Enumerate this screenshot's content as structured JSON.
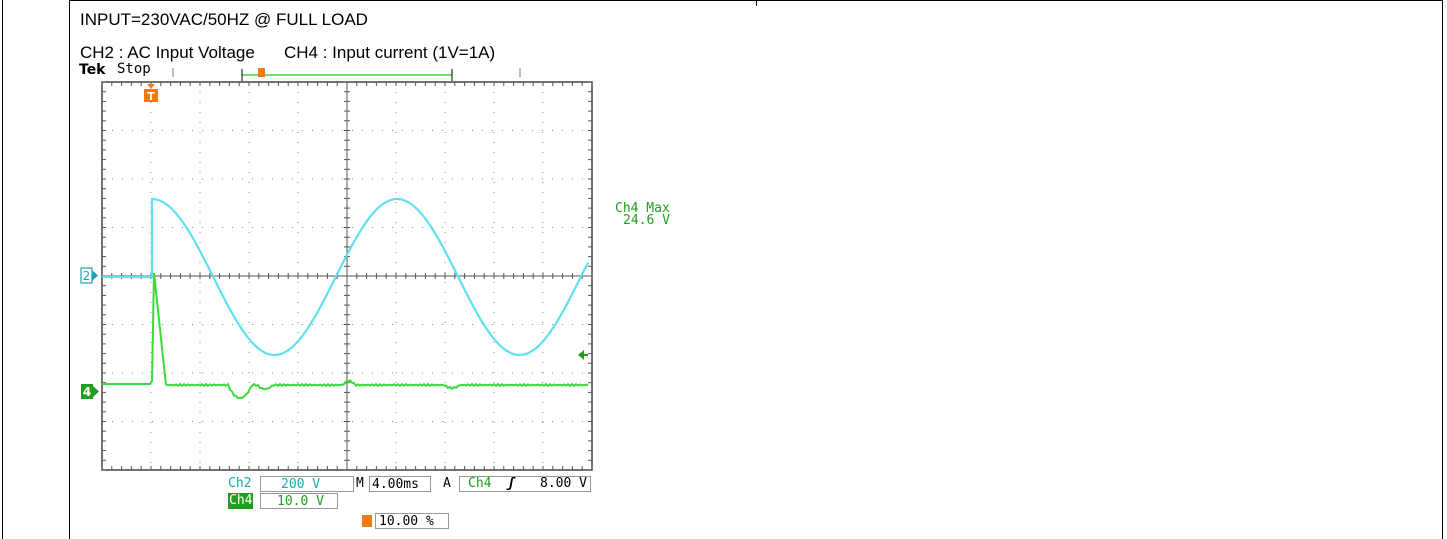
{
  "header": {
    "line1": "INPUT=230VAC/50HZ @ FULL LOAD",
    "ch2_desc": "CH2 : AC Input Voltage",
    "ch4_desc": "CH4 : Input current (1V=1A)"
  },
  "scope": {
    "brand": "Tek",
    "state": "Stop",
    "ch2_marker": "2",
    "ch4_marker": "4",
    "trigger_marker": "T",
    "measurement": {
      "label": "Ch4 Max",
      "value": "24.6 V"
    },
    "readout": {
      "ch2_label": "Ch2",
      "ch2_scale": "200 V",
      "ch4_label": "Ch4",
      "ch4_scale": "10.0 V",
      "timebase": "4.00ms",
      "timebase_prefix": "M",
      "trigger_prefix": "A",
      "trigger_source": "Ch4",
      "trigger_slope": "ʃ",
      "trigger_level": "8.00 V",
      "trigger_position": "10.00 %"
    },
    "colors": {
      "ch2": "#5ee0ee",
      "ch4": "#3cd83c",
      "ch2_text": "#1aa7b5",
      "ch4_text": "#1f9e1f",
      "trigger": "#f07b10",
      "grid": "#777777"
    }
  }
}
